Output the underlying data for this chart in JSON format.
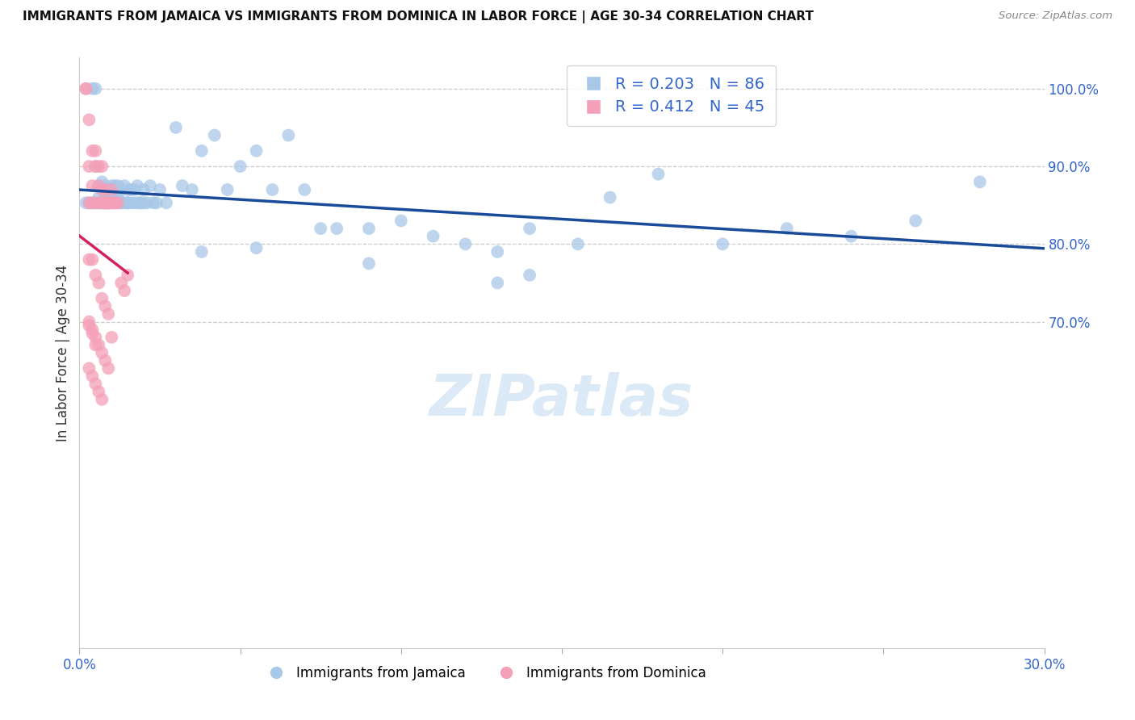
{
  "title": "IMMIGRANTS FROM JAMAICA VS IMMIGRANTS FROM DOMINICA IN LABOR FORCE | AGE 30-34 CORRELATION CHART",
  "source": "Source: ZipAtlas.com",
  "ylabel": "In Labor Force | Age 30-34",
  "r_jamaica": 0.203,
  "n_jamaica": 86,
  "r_dominica": 0.412,
  "n_dominica": 45,
  "color_jamaica": "#a8c8e8",
  "color_dominica": "#f4a0b8",
  "line_color_jamaica": "#1a4a9a",
  "line_color_dominica": "#d42060",
  "xlim": [
    0.0,
    0.3
  ],
  "ylim": [
    0.28,
    1.04
  ],
  "xticks": [
    0.0,
    0.05,
    0.1,
    0.15,
    0.2,
    0.25,
    0.3
  ],
  "xticklabels": [
    "0.0%",
    "",
    "",
    "",
    "",
    "",
    "30.0%"
  ],
  "ytick_right_vals": [
    0.7,
    0.8,
    0.9,
    1.0
  ],
  "ytick_right_labels": [
    "70.0%",
    "80.0%",
    "90.0%",
    "100.0%"
  ],
  "watermark": "ZIPatlas",
  "legend_jamaica": "Immigrants from Jamaica",
  "legend_dominica": "Immigrants from Dominica",
  "jamaica_x": [
    0.002,
    0.003,
    0.004,
    0.004,
    0.005,
    0.005,
    0.005,
    0.006,
    0.006,
    0.006,
    0.007,
    0.007,
    0.007,
    0.008,
    0.008,
    0.008,
    0.008,
    0.009,
    0.009,
    0.009,
    0.01,
    0.01,
    0.01,
    0.01,
    0.011,
    0.011,
    0.011,
    0.012,
    0.012,
    0.012,
    0.013,
    0.013,
    0.013,
    0.014,
    0.014,
    0.015,
    0.015,
    0.015,
    0.016,
    0.016,
    0.017,
    0.017,
    0.018,
    0.018,
    0.019,
    0.019,
    0.02,
    0.02,
    0.021,
    0.022,
    0.023,
    0.024,
    0.025,
    0.027,
    0.03,
    0.032,
    0.035,
    0.038,
    0.042,
    0.046,
    0.05,
    0.055,
    0.06,
    0.065,
    0.07,
    0.075,
    0.08,
    0.09,
    0.1,
    0.11,
    0.12,
    0.13,
    0.14,
    0.155,
    0.165,
    0.18,
    0.2,
    0.22,
    0.24,
    0.26,
    0.13,
    0.28,
    0.038,
    0.055,
    0.09,
    0.14
  ],
  "jamaica_y": [
    0.853,
    0.853,
    0.853,
    1.0,
    0.853,
    0.9,
    1.0,
    0.853,
    0.86,
    0.875,
    0.853,
    0.853,
    0.88,
    0.853,
    0.853,
    0.86,
    0.875,
    0.853,
    0.853,
    0.87,
    0.853,
    0.853,
    0.86,
    0.875,
    0.853,
    0.86,
    0.875,
    0.853,
    0.86,
    0.875,
    0.853,
    0.853,
    0.87,
    0.853,
    0.875,
    0.853,
    0.853,
    0.87,
    0.853,
    0.87,
    0.853,
    0.87,
    0.853,
    0.875,
    0.853,
    0.853,
    0.853,
    0.87,
    0.853,
    0.875,
    0.853,
    0.853,
    0.87,
    0.853,
    0.95,
    0.875,
    0.87,
    0.92,
    0.94,
    0.87,
    0.9,
    0.92,
    0.87,
    0.94,
    0.87,
    0.82,
    0.82,
    0.82,
    0.83,
    0.81,
    0.8,
    0.79,
    0.82,
    0.8,
    0.86,
    0.89,
    0.8,
    0.82,
    0.81,
    0.83,
    0.75,
    0.88,
    0.79,
    0.795,
    0.775,
    0.76
  ],
  "dominica_x": [
    0.002,
    0.002,
    0.003,
    0.003,
    0.003,
    0.004,
    0.004,
    0.004,
    0.005,
    0.005,
    0.005,
    0.006,
    0.006,
    0.006,
    0.007,
    0.007,
    0.007,
    0.008,
    0.008,
    0.008,
    0.009,
    0.009,
    0.01,
    0.01,
    0.011,
    0.011,
    0.012,
    0.013,
    0.014,
    0.015,
    0.003,
    0.004,
    0.005,
    0.006,
    0.007,
    0.008,
    0.009,
    0.01,
    0.003,
    0.004,
    0.005,
    0.006,
    0.007,
    0.008,
    0.009
  ],
  "dominica_y": [
    1.0,
    1.0,
    0.96,
    0.9,
    0.853,
    0.92,
    0.875,
    0.853,
    0.92,
    0.9,
    0.853,
    0.9,
    0.875,
    0.853,
    0.9,
    0.87,
    0.853,
    0.87,
    0.853,
    0.853,
    0.853,
    0.853,
    0.853,
    0.87,
    0.853,
    0.853,
    0.853,
    0.75,
    0.74,
    0.76,
    0.78,
    0.78,
    0.76,
    0.75,
    0.73,
    0.72,
    0.71,
    0.68,
    0.7,
    0.69,
    0.68,
    0.67,
    0.66,
    0.65,
    0.64
  ],
  "dominica_low_x": [
    0.003,
    0.004,
    0.005,
    0.003,
    0.004,
    0.005,
    0.006,
    0.007
  ],
  "dominica_low_y": [
    0.695,
    0.685,
    0.67,
    0.64,
    0.63,
    0.62,
    0.61,
    0.6
  ]
}
